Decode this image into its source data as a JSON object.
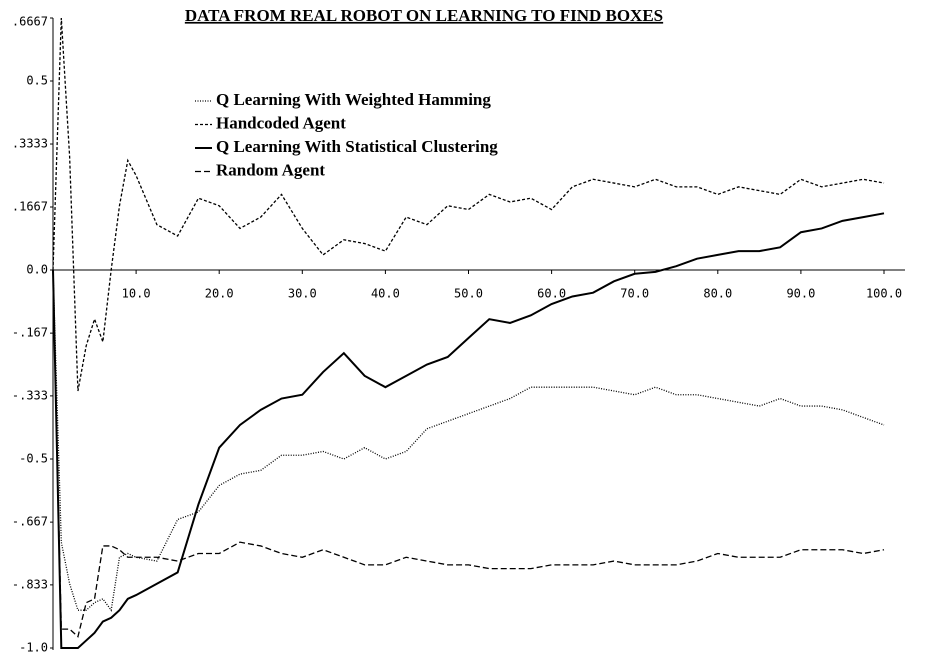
{
  "chart_data": {
    "type": "line",
    "title": "DATA FROM REAL ROBOT ON LEARNING TO FIND BOXES",
    "x": [
      0,
      1,
      2,
      3,
      4,
      5,
      6,
      7,
      8,
      9,
      10,
      12.5,
      15,
      17.5,
      20,
      22.5,
      25,
      27.5,
      30,
      32.5,
      35,
      37.5,
      40,
      42.5,
      45,
      47.5,
      50,
      52.5,
      55,
      57.5,
      60,
      62.5,
      65,
      67.5,
      70,
      72.5,
      75,
      77.5,
      80,
      82.5,
      85,
      87.5,
      90,
      92.5,
      95,
      97.5,
      100
    ],
    "series": [
      {
        "name": "Q Learning With Weighted Hamming",
        "color": "#000000",
        "style": "dotted",
        "values": [
          0,
          -0.72,
          -0.83,
          -0.9,
          -0.9,
          -0.88,
          -0.87,
          -0.9,
          -0.76,
          -0.75,
          -0.76,
          -0.77,
          -0.66,
          -0.64,
          -0.57,
          -0.54,
          -0.53,
          -0.49,
          -0.49,
          -0.48,
          -0.5,
          -0.47,
          -0.5,
          -0.48,
          -0.42,
          -0.4,
          -0.38,
          -0.36,
          -0.34,
          -0.31,
          -0.31,
          -0.31,
          -0.31,
          -0.32,
          -0.33,
          -0.31,
          -0.33,
          -0.33,
          -0.34,
          -0.35,
          -0.36,
          -0.34,
          -0.36,
          -0.36,
          -0.37,
          -0.39,
          -0.41
        ]
      },
      {
        "name": "Handcoded Agent",
        "color": "#000000",
        "style": "dashed",
        "values": [
          0,
          0.6667,
          0.3,
          -0.32,
          -0.2,
          -0.13,
          -0.19,
          0,
          0.17,
          0.29,
          0.25,
          0.12,
          0.09,
          0.19,
          0.17,
          0.11,
          0.14,
          0.2,
          0.11,
          0.04,
          0.08,
          0.07,
          0.05,
          0.14,
          0.12,
          0.17,
          0.16,
          0.2,
          0.18,
          0.19,
          0.16,
          0.22,
          0.24,
          0.23,
          0.22,
          0.24,
          0.22,
          0.22,
          0.2,
          0.22,
          0.21,
          0.2,
          0.24,
          0.22,
          0.23,
          0.24,
          0.23
        ]
      },
      {
        "name": "Q Learning With Statistical Clustering",
        "color": "#000000",
        "style": "solid",
        "values": [
          0,
          -1.0,
          -1.0,
          -1.0,
          -0.98,
          -0.96,
          -0.93,
          -0.92,
          -0.9,
          -0.87,
          -0.86,
          -0.83,
          -0.8,
          -0.62,
          -0.47,
          -0.41,
          -0.37,
          -0.34,
          -0.33,
          -0.27,
          -0.22,
          -0.28,
          -0.31,
          -0.28,
          -0.25,
          -0.23,
          -0.18,
          -0.13,
          -0.14,
          -0.12,
          -0.09,
          -0.07,
          -0.06,
          -0.03,
          -0.01,
          -0.005,
          0.01,
          0.03,
          0.04,
          0.05,
          0.05,
          0.06,
          0.1,
          0.11,
          0.13,
          0.14,
          0.15
        ]
      },
      {
        "name": "Random Agent",
        "color": "#000000",
        "style": "longdash",
        "values": [
          0,
          -0.95,
          -0.95,
          -0.97,
          -0.88,
          -0.87,
          -0.73,
          -0.73,
          -0.74,
          -0.76,
          -0.76,
          -0.76,
          -0.77,
          -0.75,
          -0.75,
          -0.72,
          -0.73,
          -0.75,
          -0.76,
          -0.74,
          -0.76,
          -0.78,
          -0.78,
          -0.76,
          -0.77,
          -0.78,
          -0.78,
          -0.79,
          -0.79,
          -0.79,
          -0.78,
          -0.78,
          -0.78,
          -0.77,
          -0.78,
          -0.78,
          -0.78,
          -0.77,
          -0.75,
          -0.76,
          -0.76,
          -0.76,
          -0.74,
          -0.74,
          -0.74,
          -0.75,
          -0.74
        ]
      }
    ],
    "xlim": [
      0,
      100
    ],
    "xticks": [
      {
        "value": 10,
        "label": "10.0"
      },
      {
        "value": 20,
        "label": "20.0"
      },
      {
        "value": 30,
        "label": "30.0"
      },
      {
        "value": 40,
        "label": "40.0"
      },
      {
        "value": 50,
        "label": "50.0"
      },
      {
        "value": 60,
        "label": "60.0"
      },
      {
        "value": 70,
        "label": "70.0"
      },
      {
        "value": 80,
        "label": "80.0"
      },
      {
        "value": 90,
        "label": "90.0"
      },
      {
        "value": 100,
        "label": "100.0"
      }
    ],
    "ylim": [
      -1,
      0.6667
    ],
    "yticks": [
      {
        "value": 0.6667,
        "label": ".6667"
      },
      {
        "value": 0.5,
        "label": "0.5"
      },
      {
        "value": 0.3333,
        "label": ".3333"
      },
      {
        "value": 0.1667,
        "label": ".1667"
      },
      {
        "value": 0,
        "label": "0.0"
      },
      {
        "value": -0.167,
        "label": "-.167"
      },
      {
        "value": -0.333,
        "label": "-.333"
      },
      {
        "value": -0.5,
        "label": "-0.5"
      },
      {
        "value": -0.667,
        "label": "-.667"
      },
      {
        "value": -0.833,
        "label": "-.833"
      },
      {
        "value": -1,
        "label": "-1.0"
      }
    ],
    "grid": false
  }
}
